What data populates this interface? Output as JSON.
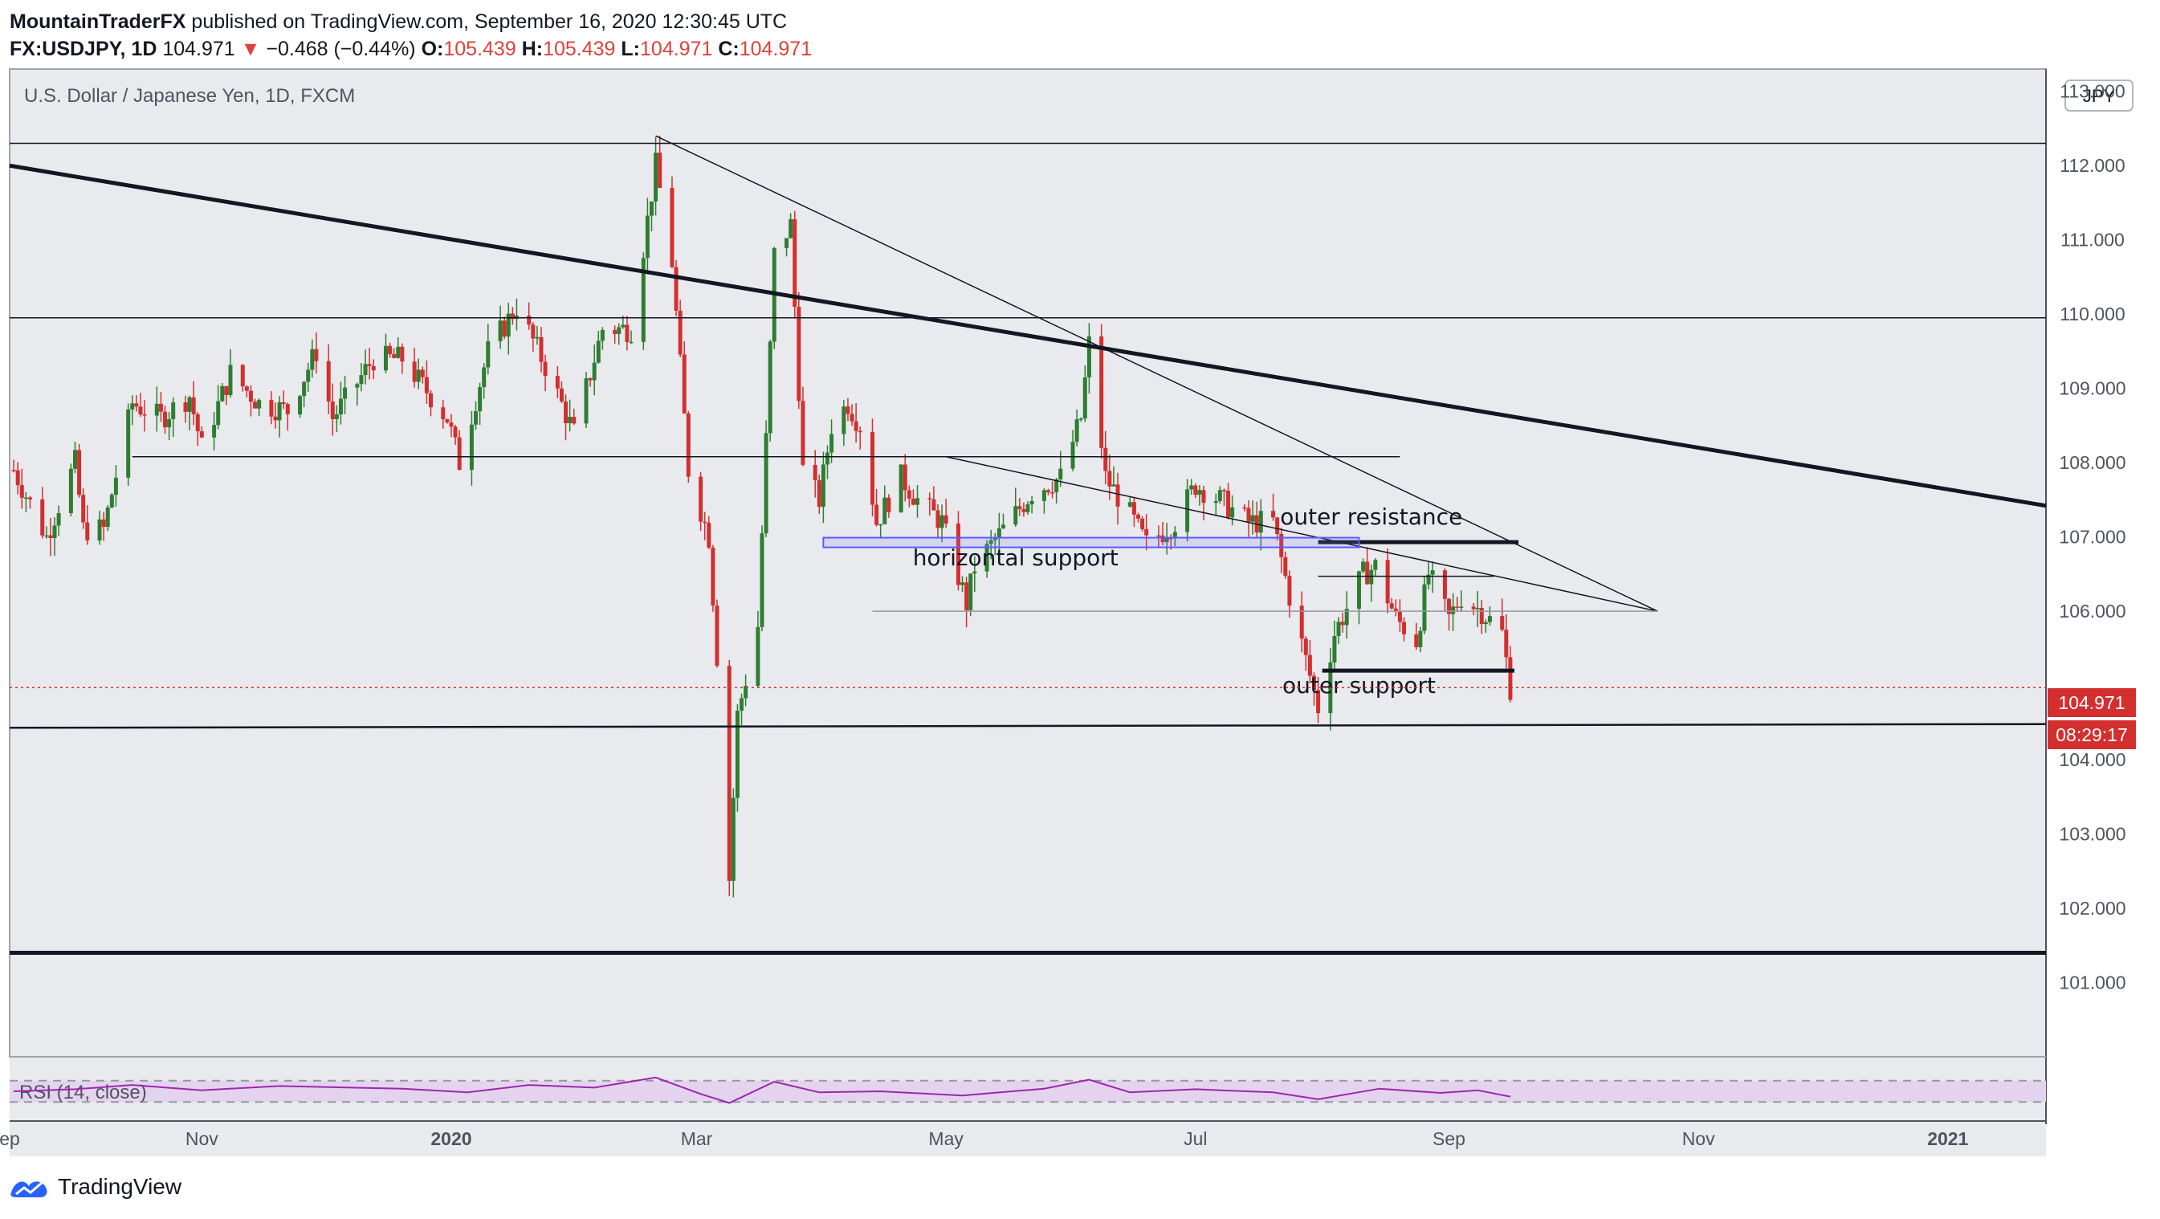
{
  "header": {
    "author": "MountainTraderFX",
    "published_text": " published on TradingView.com, September 16, 2020 12:30:45 UTC",
    "symbol": "FX:USDJPY, 1D",
    "last": "104.971",
    "change": "−0.468 (−0.44%)",
    "o_label": "O:",
    "o_value": "105.439",
    "h_label": "H:",
    "h_value": "105.439",
    "l_label": "L:",
    "l_value": "104.971",
    "c_label": "C:",
    "c_value": "104.971"
  },
  "chart_title": "U.S. Dollar / Japanese Yen, 1D, FXCM",
  "currency_button": "JPY",
  "price_badge": "104.971",
  "countdown_badge": "08:29:17",
  "rsi_label": "RSI (14, close)",
  "footer_brand": "TradingView",
  "colors": {
    "up": "#2e7d32",
    "down": "#d32f2f",
    "background": "#e9eaed",
    "rsi_band": "#e4d3ee",
    "rsi_line": "#9c27b0",
    "badge": "#d32f2f",
    "zone_border": "#5b5bff"
  },
  "chart_data": {
    "type": "candlestick",
    "title": "U.S. Dollar / Japanese Yen, 1D, FXCM",
    "currency": "JPY",
    "y_ticks": [
      113.0,
      112.0,
      111.0,
      110.0,
      109.0,
      108.0,
      107.0,
      106.0,
      104.0,
      103.0,
      102.0,
      101.0
    ],
    "y_tick_labels": [
      "113.000",
      "112.000",
      "111.000",
      "110.000",
      "109.000",
      "108.000",
      "107.000",
      "106.000",
      "104.000",
      "103.000",
      "102.000",
      "101.000"
    ],
    "ylim": [
      100.0,
      113.3
    ],
    "x_labels": [
      {
        "label": "ep",
        "date": "2019-09-15"
      },
      {
        "label": "Nov",
        "date": "2019-11-01"
      },
      {
        "label": "2020",
        "date": "2020-01-01"
      },
      {
        "label": "Mar",
        "date": "2020-03-01"
      },
      {
        "label": "May",
        "date": "2020-05-01"
      },
      {
        "label": "Jul",
        "date": "2020-07-01"
      },
      {
        "label": "Sep",
        "date": "2020-09-01"
      },
      {
        "label": "Nov",
        "date": "2020-11-01"
      },
      {
        "label": "2021",
        "date": "2021-01-01"
      }
    ],
    "xlim": [
      "2019-09-15",
      "2021-01-25"
    ],
    "close_path": [
      [
        "2019-09-16",
        107.9
      ],
      [
        "2019-09-24",
        107.0
      ],
      [
        "2019-10-01",
        108.0
      ],
      [
        "2019-10-03",
        107.1
      ],
      [
        "2019-10-08",
        107.1
      ],
      [
        "2019-10-15",
        108.8
      ],
      [
        "2019-10-22",
        108.6
      ],
      [
        "2019-10-29",
        108.9
      ],
      [
        "2019-11-01",
        108.2
      ],
      [
        "2019-11-08",
        109.2
      ],
      [
        "2019-11-15",
        108.8
      ],
      [
        "2019-11-22",
        108.7
      ],
      [
        "2019-11-29",
        109.5
      ],
      [
        "2019-12-03",
        108.6
      ],
      [
        "2019-12-13",
        109.4
      ],
      [
        "2019-12-20",
        109.4
      ],
      [
        "2019-12-31",
        108.6
      ],
      [
        "2020-01-03",
        108.0
      ],
      [
        "2020-01-10",
        109.5
      ],
      [
        "2020-01-17",
        110.1
      ],
      [
        "2020-01-24",
        109.3
      ],
      [
        "2020-01-31",
        108.4
      ],
      [
        "2020-02-07",
        109.8
      ],
      [
        "2020-02-14",
        109.8
      ],
      [
        "2020-02-20",
        112.0
      ],
      [
        "2020-02-24",
        110.7
      ],
      [
        "2020-02-28",
        107.9
      ],
      [
        "2020-03-04",
        107.0
      ],
      [
        "2020-03-06",
        105.4
      ],
      [
        "2020-03-09",
        102.4
      ],
      [
        "2020-03-11",
        104.6
      ],
      [
        "2020-03-16",
        105.8
      ],
      [
        "2020-03-20",
        110.8
      ],
      [
        "2020-03-24",
        111.2
      ],
      [
        "2020-03-27",
        107.9
      ],
      [
        "2020-03-31",
        107.5
      ],
      [
        "2020-04-03",
        108.5
      ],
      [
        "2020-04-07",
        108.8
      ],
      [
        "2020-04-10",
        108.5
      ],
      [
        "2020-04-14",
        107.2
      ],
      [
        "2020-04-20",
        107.8
      ],
      [
        "2020-04-24",
        107.5
      ],
      [
        "2020-04-30",
        107.2
      ],
      [
        "2020-05-06",
        106.1
      ],
      [
        "2020-05-08",
        106.6
      ],
      [
        "2020-05-15",
        107.1
      ],
      [
        "2020-05-22",
        107.6
      ],
      [
        "2020-05-29",
        107.8
      ],
      [
        "2020-06-03",
        108.6
      ],
      [
        "2020-06-05",
        109.6
      ],
      [
        "2020-06-09",
        107.8
      ],
      [
        "2020-06-15",
        107.3
      ],
      [
        "2020-06-19",
        106.9
      ],
      [
        "2020-06-26",
        107.2
      ],
      [
        "2020-07-01",
        107.7
      ],
      [
        "2020-07-07",
        107.5
      ],
      [
        "2020-07-14",
        107.2
      ],
      [
        "2020-07-20",
        107.2
      ],
      [
        "2020-07-24",
        106.2
      ],
      [
        "2020-07-31",
        104.7
      ],
      [
        "2020-08-04",
        105.7
      ],
      [
        "2020-08-11",
        106.5
      ],
      [
        "2020-08-14",
        106.6
      ],
      [
        "2020-08-19",
        105.9
      ],
      [
        "2020-08-24",
        105.6
      ],
      [
        "2020-08-27",
        106.5
      ],
      [
        "2020-09-01",
        105.9
      ],
      [
        "2020-09-04",
        106.2
      ],
      [
        "2020-09-09",
        106.0
      ],
      [
        "2020-09-14",
        105.7
      ],
      [
        "2020-09-16",
        104.971
      ]
    ],
    "drawings": {
      "horizontal_lines": [
        {
          "price": 112.3,
          "style": "thin"
        },
        {
          "price": 109.95,
          "style": "thin"
        },
        {
          "price": 101.4,
          "style": "thick"
        }
      ],
      "segments": [
        {
          "from": [
            "2019-09-15",
            112.0
          ],
          "to": [
            "2021-01-25",
            107.42
          ],
          "style": "thick"
        },
        {
          "from": [
            "2020-02-20",
            112.4
          ],
          "to": [
            "2020-10-22",
            106.0
          ],
          "style": "thin"
        },
        {
          "from": [
            "2020-05-01",
            108.08
          ],
          "to": [
            "2020-10-22",
            106.0
          ],
          "style": "thin"
        },
        {
          "from": [
            "2019-10-15",
            108.08
          ],
          "to": [
            "2020-08-20",
            108.08
          ],
          "style": "thin"
        },
        {
          "from": [
            "2020-04-13",
            106.0
          ],
          "to": [
            "2020-10-22",
            106.0
          ],
          "style": "thin",
          "color": "grey"
        },
        {
          "from": [
            "2019-09-15",
            104.43
          ],
          "to": [
            "2021-01-25",
            104.48
          ],
          "style": "medium"
        },
        {
          "from": [
            "2020-07-31",
            106.93
          ],
          "to": [
            "2020-09-18",
            106.93
          ],
          "style": "thick"
        },
        {
          "from": [
            "2020-08-01",
            105.2
          ],
          "to": [
            "2020-09-17",
            105.2
          ],
          "style": "thick"
        },
        {
          "from": [
            "2020-07-31",
            106.47
          ],
          "to": [
            "2020-09-12",
            106.47
          ],
          "style": "thin"
        }
      ],
      "zone": {
        "from": "2020-04-01",
        "to": "2020-08-10",
        "top": 106.99,
        "bottom": 106.86
      },
      "annotations": [
        {
          "text": "horizontal support",
          "date": "2020-05-18",
          "price": 106.62
        },
        {
          "text": "outer resistance",
          "date": "2020-08-13",
          "price": 107.17
        },
        {
          "text": "outer support",
          "date": "2020-08-10",
          "price": 104.9
        }
      ]
    },
    "last_price": 104.971,
    "rsi": {
      "period": 14,
      "upper": 70,
      "lower": 30,
      "path": [
        [
          "2019-09-16",
          50
        ],
        [
          "2019-10-01",
          54
        ],
        [
          "2019-10-15",
          62
        ],
        [
          "2019-11-01",
          52
        ],
        [
          "2019-11-20",
          60
        ],
        [
          "2019-12-20",
          55
        ],
        [
          "2020-01-05",
          48
        ],
        [
          "2020-01-20",
          62
        ],
        [
          "2020-02-05",
          57
        ],
        [
          "2020-02-20",
          76
        ],
        [
          "2020-03-02",
          45
        ],
        [
          "2020-03-09",
          28
        ],
        [
          "2020-03-20",
          68
        ],
        [
          "2020-03-31",
          48
        ],
        [
          "2020-04-15",
          50
        ],
        [
          "2020-05-05",
          42
        ],
        [
          "2020-05-25",
          55
        ],
        [
          "2020-06-05",
          72
        ],
        [
          "2020-06-15",
          48
        ],
        [
          "2020-07-01",
          54
        ],
        [
          "2020-07-20",
          48
        ],
        [
          "2020-07-31",
          35
        ],
        [
          "2020-08-15",
          55
        ],
        [
          "2020-08-30",
          47
        ],
        [
          "2020-09-08",
          52
        ],
        [
          "2020-09-16",
          40
        ]
      ]
    }
  }
}
